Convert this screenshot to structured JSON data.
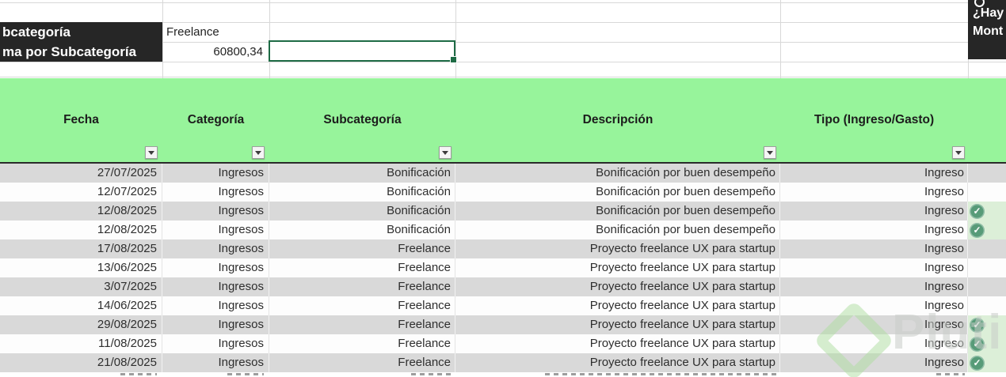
{
  "summary_panel": {
    "label_row1": "bcategoría",
    "label_row2": "ma por Subcategoría",
    "subcategory_value": "Freelance",
    "sum_value": "60800,34"
  },
  "corner_panel": {
    "line1": "¿Hay",
    "line2": "Mont"
  },
  "table": {
    "columns": [
      {
        "label": "Fecha"
      },
      {
        "label": "Categoría"
      },
      {
        "label": "Subcategoría"
      },
      {
        "label": "Descripción"
      },
      {
        "label": "Tipo (Ingreso/Gasto)"
      }
    ],
    "rows": [
      {
        "date": "27/07/2025",
        "category": "Ingresos",
        "subcategory": "Bonificación",
        "description": "Bonificación por buen desempeño",
        "type": "Ingreso",
        "checked": false
      },
      {
        "date": "12/07/2025",
        "category": "Ingresos",
        "subcategory": "Bonificación",
        "description": "Bonificación por buen desempeño",
        "type": "Ingreso",
        "checked": false
      },
      {
        "date": "12/08/2025",
        "category": "Ingresos",
        "subcategory": "Bonificación",
        "description": "Bonificación por buen desempeño",
        "type": "Ingreso",
        "checked": true
      },
      {
        "date": "12/08/2025",
        "category": "Ingresos",
        "subcategory": "Bonificación",
        "description": "Bonificación por buen desempeño",
        "type": "Ingreso",
        "checked": true
      },
      {
        "date": "17/08/2025",
        "category": "Ingresos",
        "subcategory": "Freelance",
        "description": "Proyecto freelance UX para startup",
        "type": "Ingreso",
        "checked": false
      },
      {
        "date": "13/06/2025",
        "category": "Ingresos",
        "subcategory": "Freelance",
        "description": "Proyecto freelance UX para startup",
        "type": "Ingreso",
        "checked": false
      },
      {
        "date": "3/07/2025",
        "category": "Ingresos",
        "subcategory": "Freelance",
        "description": "Proyecto freelance UX para startup",
        "type": "Ingreso",
        "checked": false
      },
      {
        "date": "14/06/2025",
        "category": "Ingresos",
        "subcategory": "Freelance",
        "description": "Proyecto freelance UX para startup",
        "type": "Ingreso",
        "checked": false
      },
      {
        "date": "29/08/2025",
        "category": "Ingresos",
        "subcategory": "Freelance",
        "description": "Proyecto freelance UX para startup",
        "type": "Ingreso",
        "checked": true
      },
      {
        "date": "11/08/2025",
        "category": "Ingresos",
        "subcategory": "Freelance",
        "description": "Proyecto freelance UX para startup",
        "type": "Ingreso",
        "checked": true
      },
      {
        "date": "21/08/2025",
        "category": "Ingresos",
        "subcategory": "Freelance",
        "description": "Proyecto freelance UX para startup",
        "type": "Ingreso",
        "checked": true
      }
    ]
  },
  "icons": {
    "check": "✓",
    "filter": "dropdown-triangle"
  },
  "watermark": {
    "text": "Pluti"
  },
  "colors": {
    "header_band_green": "#97f49b",
    "row_gray": "#d9d9d9",
    "row_white": "#fdfdfd",
    "checked_cell_green": "#dcefd8",
    "check_icon_green": "#579b78",
    "dark_panel": "#262626",
    "selection_border_green": "#1e6b45",
    "gridline": "#d8d8d8"
  }
}
